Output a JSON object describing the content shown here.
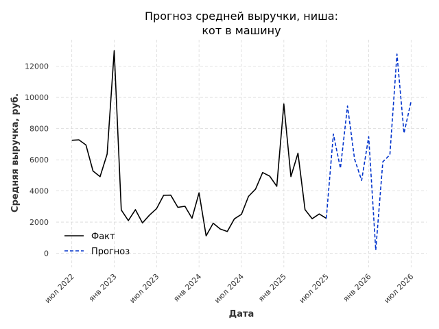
{
  "chart_data": {
    "type": "line",
    "title_line1": "Прогноз средней выручки, ниша:",
    "title_line2": "кот в машину",
    "xlabel": "Дата",
    "ylabel": "Средняя выручка, руб.",
    "ylim": [
      -900,
      13700
    ],
    "yticks": [
      0,
      2000,
      4000,
      6000,
      8000,
      10000,
      12000
    ],
    "xlim": [
      -2.2,
      50.2
    ],
    "xticks": [
      {
        "label": "июл 2022",
        "x": 0
      },
      {
        "label": "янв 2023",
        "x": 6
      },
      {
        "label": "июл 2023",
        "x": 12
      },
      {
        "label": "янв 2024",
        "x": 18
      },
      {
        "label": "июл 2024",
        "x": 24
      },
      {
        "label": "янв 2025",
        "x": 30
      },
      {
        "label": "июл 2025",
        "x": 36
      },
      {
        "label": "янв 2026",
        "x": 42
      },
      {
        "label": "июл 2026",
        "x": 48
      }
    ],
    "grid": true,
    "legend_position": "lower-left",
    "series": [
      {
        "name": "Факт",
        "color": "#000000",
        "style": "solid",
        "x": [
          0,
          1,
          2,
          3,
          4,
          5,
          6,
          7,
          8,
          9,
          10,
          11,
          12,
          13,
          14,
          15,
          16,
          17,
          18,
          19,
          20,
          21,
          22,
          23,
          24,
          25,
          26,
          27,
          28,
          29,
          30,
          31,
          32,
          33,
          34,
          35,
          36
        ],
        "values": [
          7250,
          7280,
          6950,
          5280,
          4920,
          6370,
          13000,
          2780,
          2100,
          2800,
          1950,
          2450,
          2870,
          3720,
          3730,
          2950,
          3020,
          2250,
          3880,
          1120,
          1930,
          1560,
          1400,
          2210,
          2500,
          3650,
          4120,
          5180,
          4950,
          4300,
          9580,
          4920,
          6420,
          2800,
          2220,
          2520,
          2240
        ]
      },
      {
        "name": "Прогноз",
        "color": "#0033cc",
        "style": "dashed",
        "x": [
          36,
          37,
          38,
          39,
          40,
          41,
          42,
          43,
          44,
          45,
          46,
          47,
          48
        ],
        "values": [
          2240,
          7650,
          5450,
          9450,
          6050,
          4670,
          7480,
          200,
          5870,
          6320,
          12780,
          7700,
          9750
        ]
      }
    ]
  }
}
